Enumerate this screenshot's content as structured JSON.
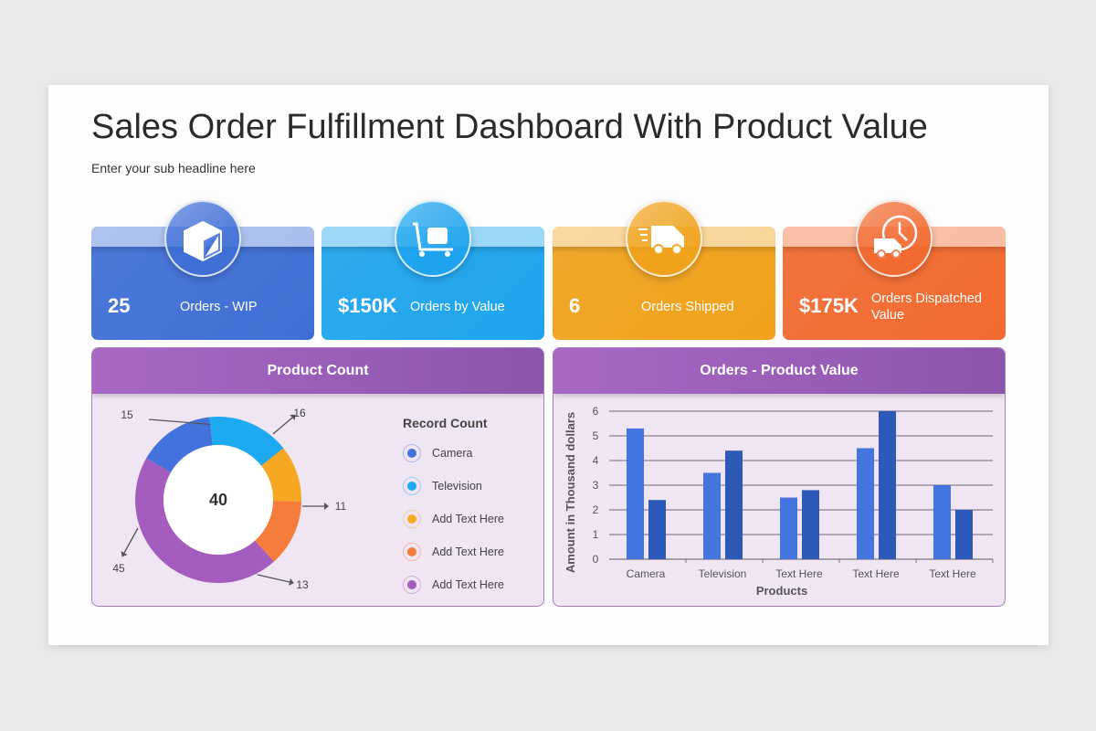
{
  "header": {
    "title": "Sales Order Fulfillment Dashboard With Product Value",
    "subtitle": "Enter your sub headline here"
  },
  "kpis": [
    {
      "value": "25",
      "label": "Orders - WIP",
      "icon": "box-icon",
      "color": "#3f6fd6"
    },
    {
      "value": "$150K",
      "label": "Orders by Value",
      "icon": "hand-truck-icon",
      "color": "#1ea4ee"
    },
    {
      "value": "6",
      "label": "Orders Shipped",
      "icon": "delivery-van-icon",
      "color": "#f0a21c"
    },
    {
      "value": "$175K",
      "label": "Orders Dispatched Value",
      "icon": "van-clock-icon",
      "color": "#f26a30"
    }
  ],
  "product_count": {
    "title": "Product Count",
    "legend_title": "Record Count",
    "chart_data": {
      "type": "pie",
      "donut": true,
      "center_label": "40",
      "categories": [
        "Camera",
        "Television",
        "Add Text Here",
        "Add Text Here",
        "Add Text Here"
      ],
      "values": [
        15,
        16,
        11,
        13,
        45
      ],
      "colors": [
        "#4472dc",
        "#1eaaf1",
        "#f7a823",
        "#f57c3a",
        "#a55cbf"
      ]
    }
  },
  "orders_value": {
    "title": "Orders - Product Value",
    "chart_data": {
      "type": "bar",
      "categories": [
        "Camera",
        "Television",
        "Text Here",
        "Text Here",
        "Text Here"
      ],
      "series": [
        {
          "values": [
            5.3,
            3.5,
            2.5,
            4.5,
            3
          ],
          "color": "#4474dd"
        },
        {
          "values": [
            2.4,
            4.4,
            2.8,
            6,
            2
          ],
          "color": "#2d5ab8"
        }
      ],
      "xlabel": "Products",
      "ylabel": "Amount in Thousand dollars",
      "ylim": [
        0,
        6
      ],
      "yticks": [
        "0",
        "1",
        "2",
        "3",
        "4",
        "5",
        "6"
      ],
      "grid": true
    }
  }
}
